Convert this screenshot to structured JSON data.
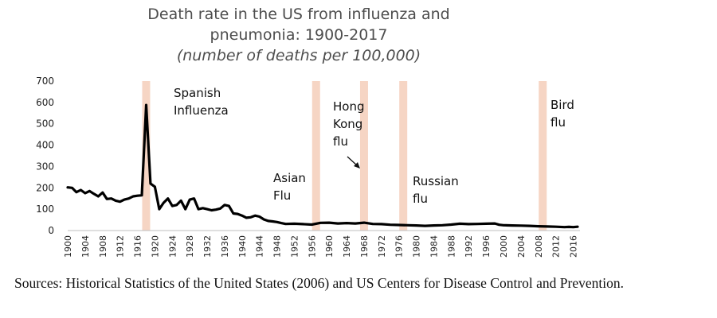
{
  "chart_data": {
    "type": "line",
    "title": "Death rate in the US from influenza and pneumonia: 1900-2017",
    "title_lines": [
      "Death rate in the US from influenza and",
      "pneumonia: 1900-2017"
    ],
    "subtitle": "(number of deaths per 100,000)",
    "xlabel": "",
    "ylabel": "",
    "xlim": [
      1900,
      2017
    ],
    "ylim": [
      0,
      700
    ],
    "y_ticks": [
      0,
      100,
      200,
      300,
      400,
      500,
      600,
      700
    ],
    "x_ticks": [
      1900,
      1904,
      1908,
      1912,
      1916,
      1920,
      1924,
      1928,
      1932,
      1936,
      1940,
      1944,
      1948,
      1952,
      1956,
      1960,
      1964,
      1968,
      1972,
      1976,
      1980,
      1984,
      1988,
      1992,
      1996,
      2000,
      2004,
      2008,
      2012,
      2016
    ],
    "grid": false,
    "legend": "none",
    "series": [
      {
        "name": "Death rate",
        "color": "#000000",
        "x": [
          1900,
          1901,
          1902,
          1903,
          1904,
          1905,
          1906,
          1907,
          1908,
          1909,
          1910,
          1911,
          1912,
          1913,
          1914,
          1915,
          1916,
          1917,
          1918,
          1919,
          1920,
          1921,
          1922,
          1923,
          1924,
          1925,
          1926,
          1927,
          1928,
          1929,
          1930,
          1931,
          1932,
          1933,
          1934,
          1935,
          1936,
          1937,
          1938,
          1939,
          1940,
          1941,
          1942,
          1943,
          1944,
          1945,
          1946,
          1947,
          1948,
          1949,
          1950,
          1952,
          1954,
          1956,
          1958,
          1960,
          1962,
          1964,
          1966,
          1968,
          1970,
          1972,
          1974,
          1976,
          1978,
          1980,
          1982,
          1984,
          1986,
          1988,
          1990,
          1992,
          1994,
          1996,
          1998,
          1999,
          2000,
          2002,
          2004,
          2006,
          2008,
          2010,
          2012,
          2014,
          2015,
          2016,
          2017
        ],
        "values": [
          202,
          200,
          180,
          190,
          175,
          185,
          172,
          160,
          178,
          148,
          150,
          140,
          135,
          145,
          150,
          160,
          163,
          165,
          588,
          220,
          205,
          100,
          130,
          150,
          115,
          120,
          140,
          100,
          145,
          150,
          100,
          105,
          100,
          95,
          98,
          103,
          120,
          115,
          80,
          78,
          70,
          60,
          62,
          70,
          65,
          52,
          45,
          43,
          40,
          35,
          31,
          32,
          30,
          28,
          36,
          37,
          33,
          35,
          33,
          37,
          31,
          30,
          27,
          26,
          25,
          24,
          22,
          24,
          25,
          28,
          32,
          30,
          31,
          32,
          33,
          27,
          25,
          24,
          23,
          22,
          20,
          19,
          18,
          16,
          17,
          16,
          18
        ]
      }
    ],
    "events": [
      {
        "year": 1918,
        "label_lines": [
          "Spanish",
          "Influenza"
        ]
      },
      {
        "year": 1957,
        "label_lines": [
          "Asian",
          "Flu"
        ]
      },
      {
        "year": 1968,
        "label_lines": [
          "Hong",
          "Kong",
          "flu"
        ]
      },
      {
        "year": 1977,
        "label_lines": [
          "Russian",
          "flu"
        ]
      },
      {
        "year": 2009,
        "label_lines": [
          "Bird",
          "flu"
        ]
      }
    ],
    "band_color": "#f6d5c4"
  },
  "footer": {
    "sources": "Sources: Historical Statistics of the United States (2006) and US Centers for Disease Control and Prevention."
  }
}
